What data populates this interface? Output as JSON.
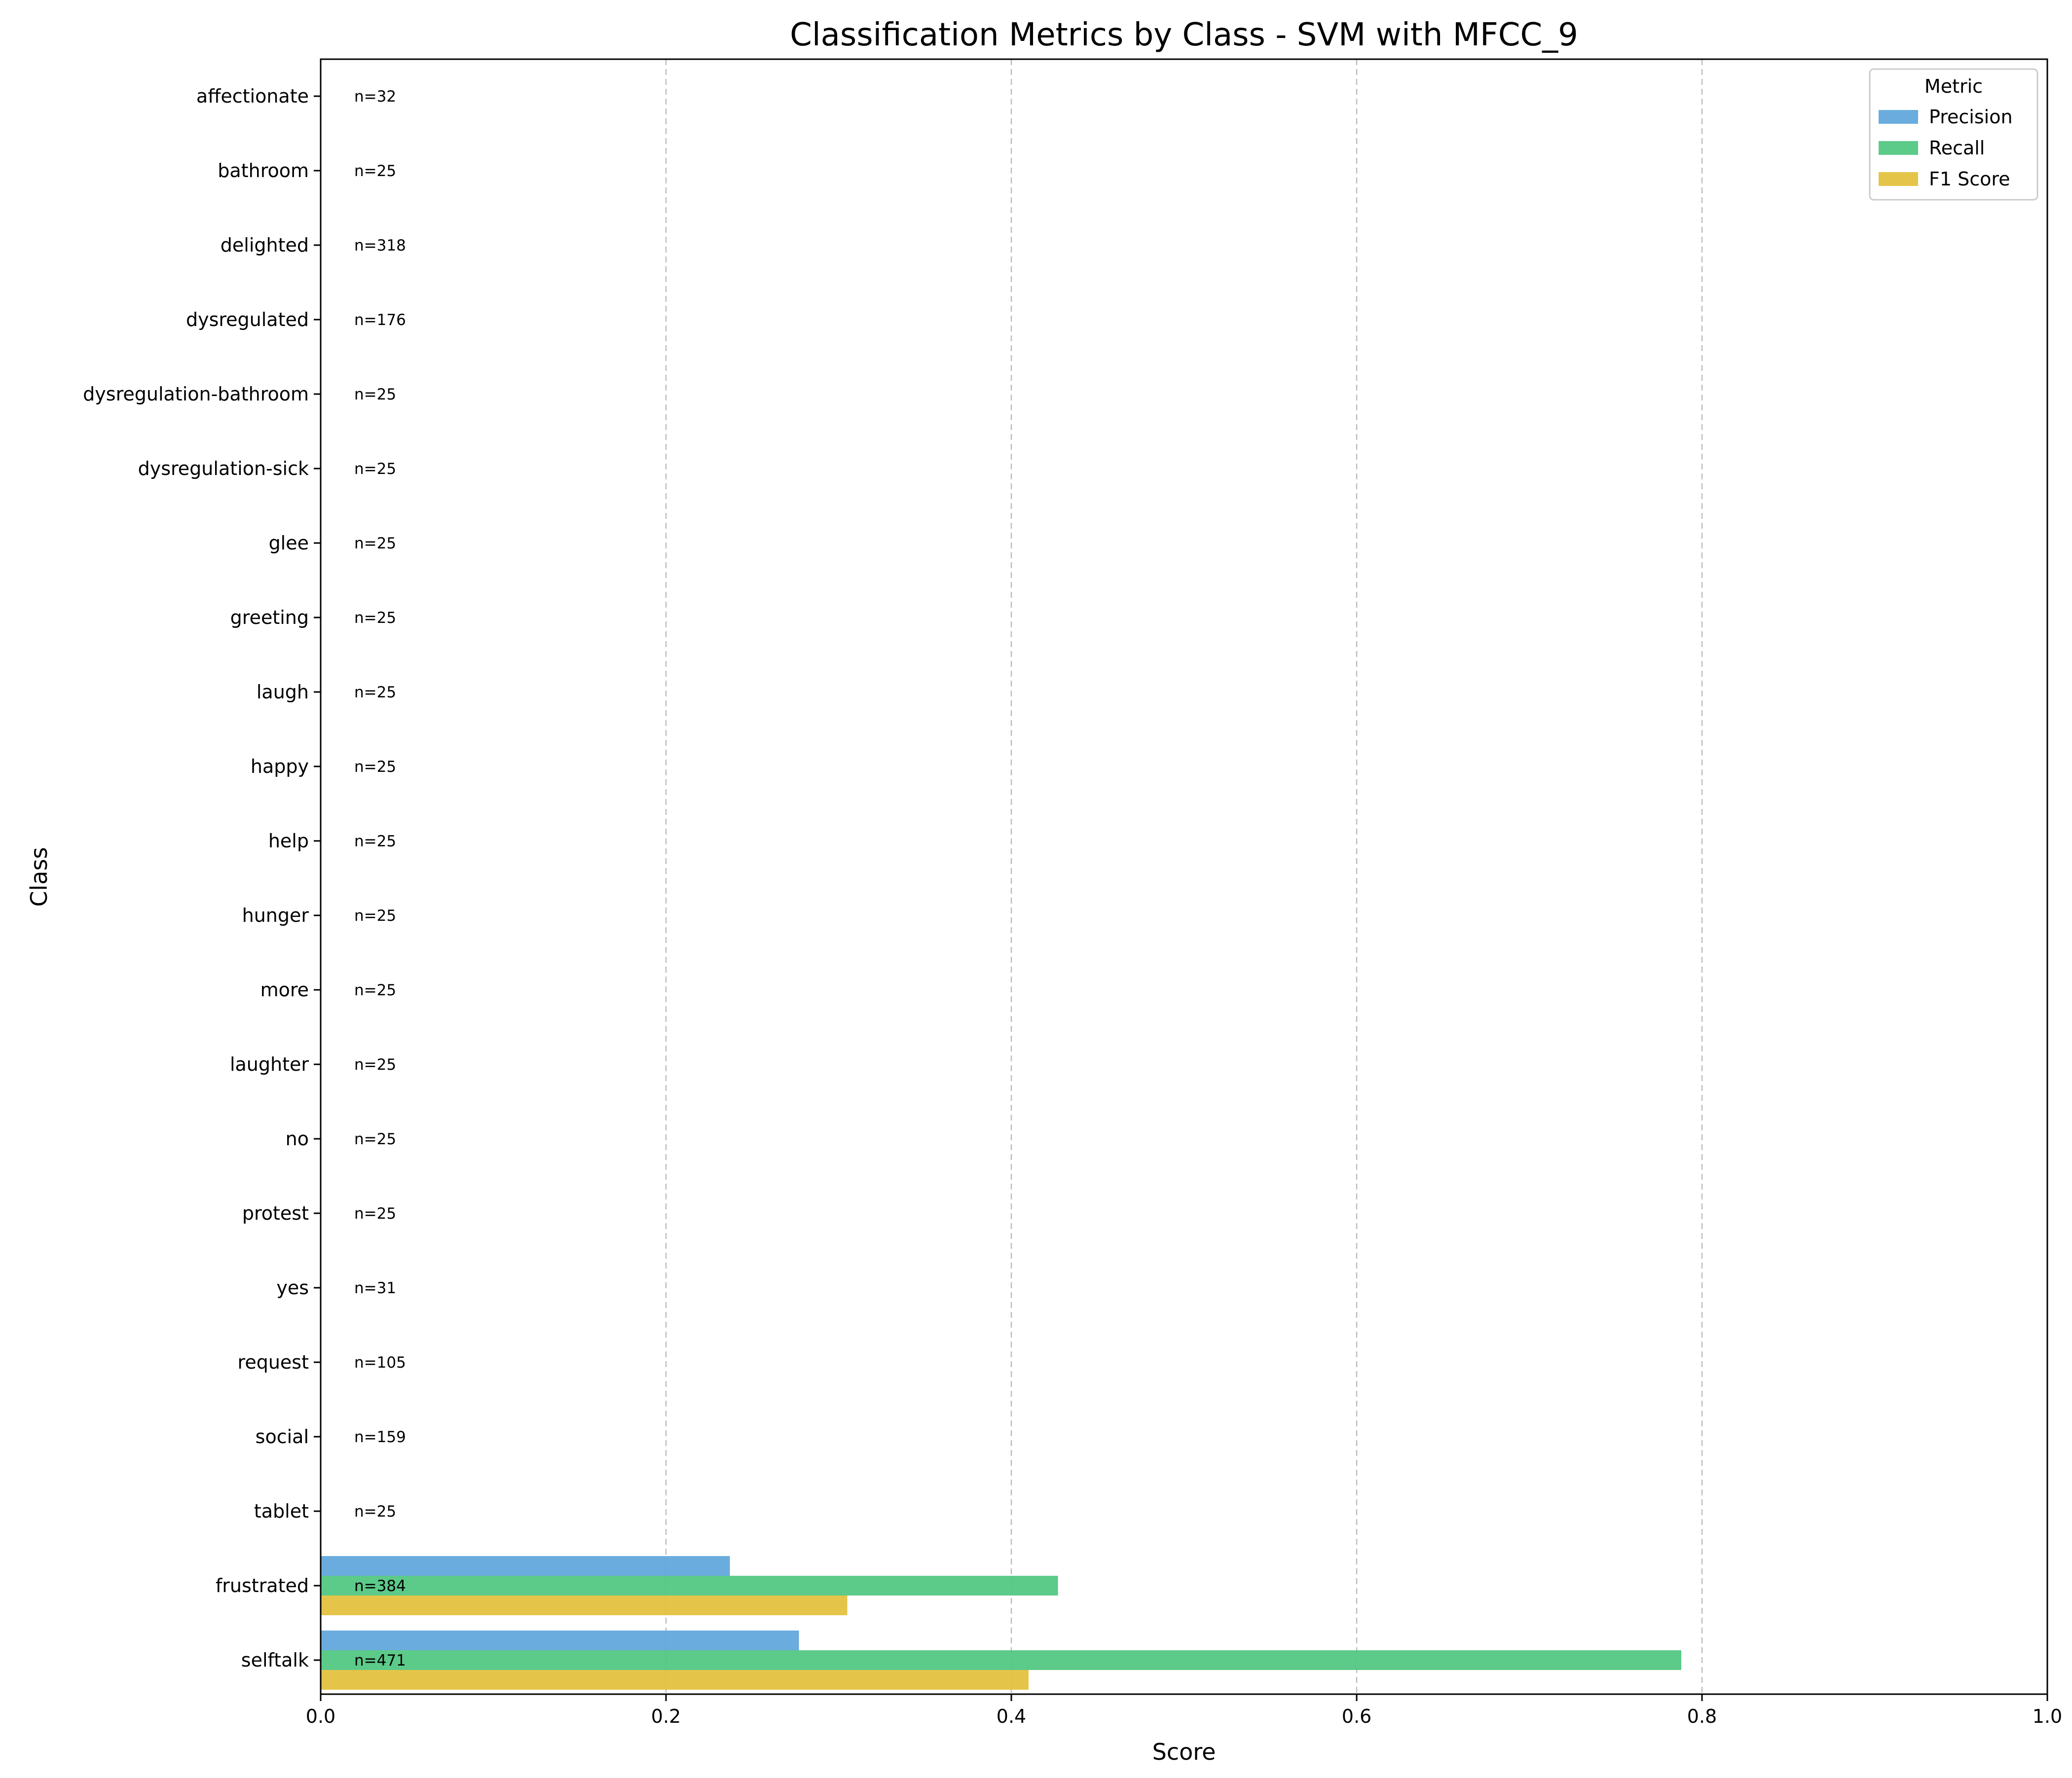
{
  "chart_data": {
    "type": "bar",
    "orientation": "horizontal",
    "title": "Classification Metrics by Class - SVM with MFCC_9",
    "xlabel": "Score",
    "ylabel": "Class",
    "xlim": [
      0,
      1
    ],
    "xticks": [
      "0.0",
      "0.2",
      "0.4",
      "0.6",
      "0.8",
      "1.0"
    ],
    "grid": "x-dashed",
    "legend_title": "Metric",
    "legend_position": "top-right",
    "categories": [
      "affectionate",
      "bathroom",
      "delighted",
      "dysregulated",
      "dysregulation-bathroom",
      "dysregulation-sick",
      "glee",
      "greeting",
      "laugh",
      "happy",
      "help",
      "hunger",
      "more",
      "laughter",
      "no",
      "protest",
      "yes",
      "request",
      "social",
      "tablet",
      "frustrated",
      "selftalk"
    ],
    "support_labels": [
      "n=32",
      "n=25",
      "n=318",
      "n=176",
      "n=25",
      "n=25",
      "n=25",
      "n=25",
      "n=25",
      "n=25",
      "n=25",
      "n=25",
      "n=25",
      "n=25",
      "n=25",
      "n=25",
      "n=31",
      "n=105",
      "n=159",
      "n=25",
      "n=384",
      "n=471"
    ],
    "series": [
      {
        "name": "Precision",
        "color": "#5DA5DA",
        "values": [
          0,
          0,
          0,
          0,
          0,
          0,
          0,
          0,
          0,
          0,
          0,
          0,
          0,
          0,
          0,
          0,
          0,
          0,
          0,
          0,
          0.237,
          0.277
        ]
      },
      {
        "name": "Recall",
        "color": "#4EC67F",
        "values": [
          0,
          0,
          0,
          0,
          0,
          0,
          0,
          0,
          0,
          0,
          0,
          0,
          0,
          0,
          0,
          0,
          0,
          0,
          0,
          0,
          0.427,
          0.788
        ]
      },
      {
        "name": "F1 Score",
        "color": "#E3C03A",
        "values": [
          0,
          0,
          0,
          0,
          0,
          0,
          0,
          0,
          0,
          0,
          0,
          0,
          0,
          0,
          0,
          0,
          0,
          0,
          0,
          0,
          0.305,
          0.41
        ]
      }
    ]
  }
}
